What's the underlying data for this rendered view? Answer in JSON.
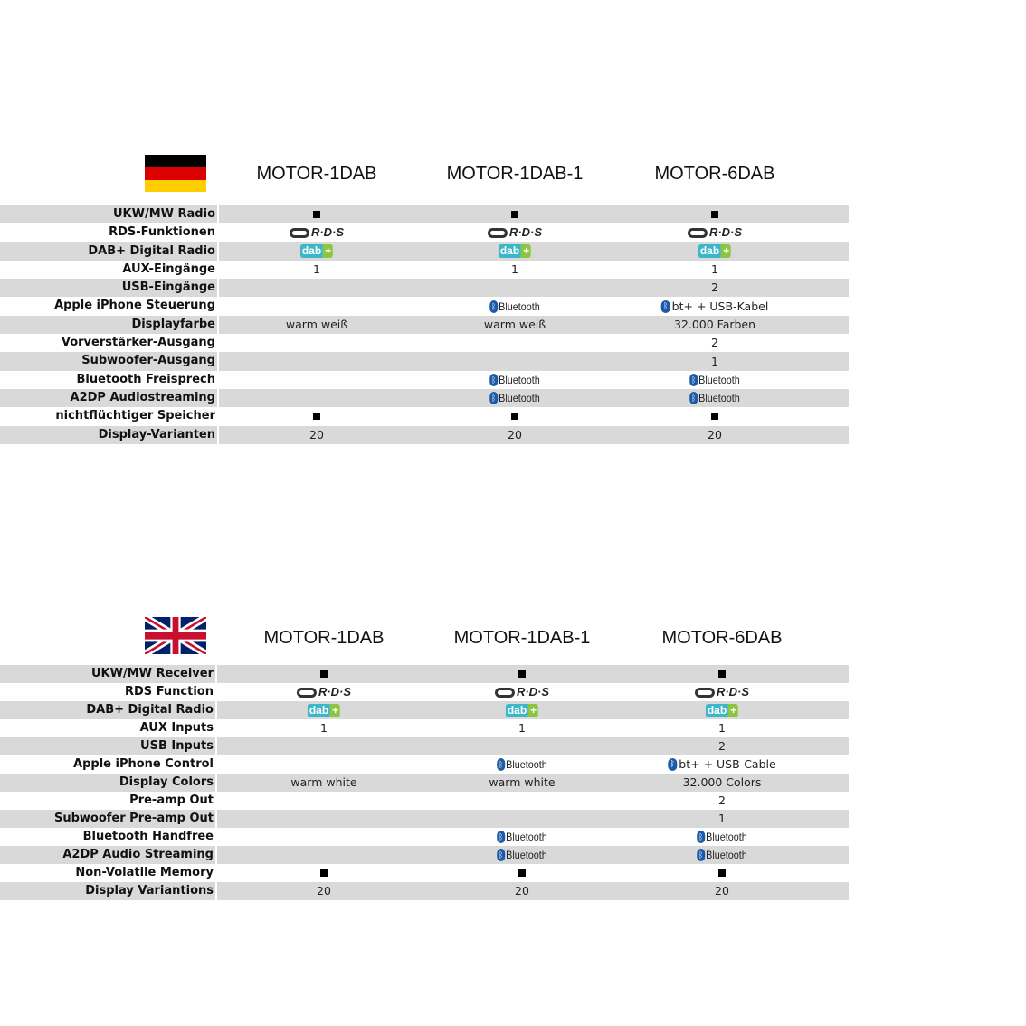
{
  "columns": [
    "MOTOR-1DAB",
    "MOTOR-1DAB-1",
    "MOTOR-6DAB"
  ],
  "german": {
    "flag": "germany-flag",
    "labels": [
      "UKW/MW Radio",
      "RDS-Funktionen",
      "DAB+ Digital Radio",
      "AUX-Eingänge",
      "USB-Eingänge",
      "Apple iPhone Steuerung",
      "Displayfarbe",
      "Vorverstärker-Ausgang",
      "Subwoofer-Ausgang",
      "Bluetooth Freisprech",
      "A2DP Audiostreaming",
      "nichtflüchtiger Speicher",
      "Display-Varianten"
    ],
    "values": [
      [
        "■",
        "rds",
        "dab",
        "1",
        "",
        "",
        "warm weiß",
        "",
        "",
        "",
        "",
        "■",
        "20"
      ],
      [
        "■",
        "rds",
        "dab",
        "1",
        "",
        "bt",
        "warm weiß",
        "",
        "",
        "bt",
        "bt",
        "■",
        "20"
      ],
      [
        "■",
        "rds",
        "dab",
        "1",
        "2",
        "bt+ + USB-Kabel",
        "32.000 Farben",
        "2",
        "1",
        "bt",
        "bt",
        "■",
        "20"
      ]
    ]
  },
  "english": {
    "flag": "uk-flag",
    "labels": [
      "UKW/MW Receiver",
      "RDS Function",
      "DAB+ Digital Radio",
      "AUX Inputs",
      "USB Inputs",
      "Apple iPhone Control",
      "Display Colors",
      "Pre-amp Out",
      "Subwoofer Pre-amp Out",
      "Bluetooth Handfree",
      "A2DP Audio Streaming",
      "Non-Volatile Memory",
      "Display Variantions"
    ],
    "values": [
      [
        "■",
        "rds",
        "dab",
        "1",
        "",
        "",
        "warm white",
        "",
        "",
        "",
        "",
        "■",
        "20"
      ],
      [
        "■",
        "rds",
        "dab",
        "1",
        "",
        "bt",
        "warm white",
        "",
        "",
        "bt",
        "bt",
        "■",
        "20"
      ],
      [
        "■",
        "rds",
        "dab",
        "1",
        "2",
        "bt+ + USB-Cable",
        "32.000 Colors",
        "2",
        "1",
        "bt",
        "bt",
        "■",
        "20"
      ]
    ]
  },
  "logos": {
    "rds": "R·D·S",
    "dab": "dab",
    "dab_plus": "+",
    "bluetooth": "Bluetooth"
  },
  "colors": {
    "stripe": "#d9d9d9",
    "dab_blue": "#3bb7c9",
    "dab_green": "#8cc63f",
    "bt_blue": "#1c5ba8"
  }
}
